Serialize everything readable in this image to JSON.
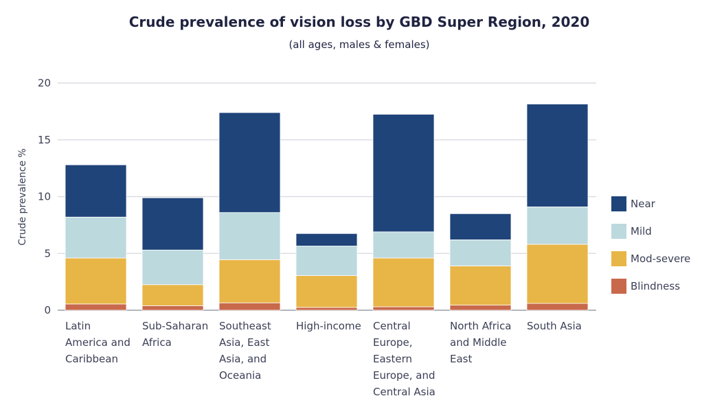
{
  "chart_data": {
    "type": "bar",
    "stacked": true,
    "title": "Crude prevalence of vision loss by GBD Super Region, 2020",
    "subtitle": "(all ages, males & females)",
    "ylabel": "Crude prevalence %",
    "xlabel": "",
    "ylim": [
      0,
      20
    ],
    "yticks": [
      0,
      5,
      10,
      15,
      20
    ],
    "grid": true,
    "legend_position": "right",
    "categories": [
      [
        "Latin",
        "America and",
        "Caribbean"
      ],
      [
        "Sub-Saharan",
        "Africa"
      ],
      [
        "Southeast",
        "Asia, East",
        "Asia, and",
        "Oceania"
      ],
      [
        "High-income"
      ],
      [
        "Central",
        "Europe,",
        "Eastern",
        "Europe, and",
        "Central Asia"
      ],
      [
        "North Africa",
        "and Middle",
        "East"
      ],
      [
        "South Asia"
      ]
    ],
    "series": [
      {
        "name": "Blindness",
        "color": "#c8694c",
        "values": [
          0.55,
          0.4,
          0.65,
          0.25,
          0.3,
          0.45,
          0.6
        ]
      },
      {
        "name": "Mod-severe",
        "color": "#e8b547",
        "values": [
          4.05,
          1.85,
          3.8,
          2.8,
          4.3,
          3.45,
          5.2
        ]
      },
      {
        "name": "Mild",
        "color": "#bcd9de",
        "values": [
          3.6,
          3.05,
          4.15,
          2.6,
          2.3,
          2.3,
          3.3
        ]
      },
      {
        "name": "Near",
        "color": "#1f4479",
        "values": [
          4.6,
          4.6,
          8.8,
          1.1,
          10.35,
          2.3,
          9.05
        ]
      }
    ],
    "legend_order": [
      "Near",
      "Mild",
      "Mod-severe",
      "Blindness"
    ]
  }
}
